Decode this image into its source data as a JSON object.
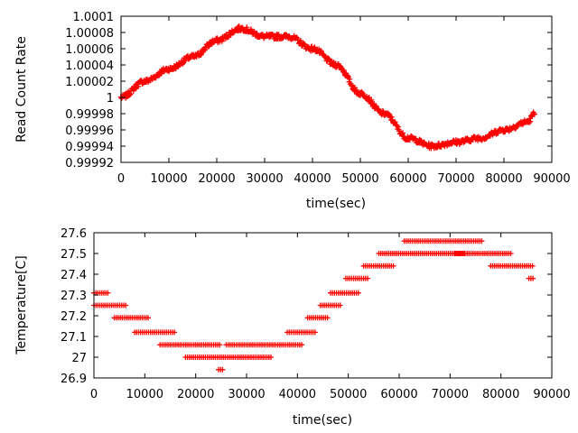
{
  "chart_data": [
    {
      "type": "scatter",
      "xlabel": "time(sec)",
      "ylabel": "Read Count Rate",
      "xlim": [
        0,
        90000
      ],
      "ylim": [
        0.99992,
        1.0001
      ],
      "xticks": [
        0,
        10000,
        20000,
        30000,
        40000,
        50000,
        60000,
        70000,
        80000,
        90000
      ],
      "yticks": [
        0.99992,
        0.99994,
        0.99996,
        0.99998,
        1,
        1.00002,
        1.00004,
        1.00006,
        1.00008,
        1.0001
      ],
      "ytick_labels": [
        "0.99992",
        "0.99994",
        "0.99996",
        "0.99998",
        "1",
        "1.00002",
        "1.00004",
        "1.00006",
        "1.00008",
        "1.0001"
      ],
      "grid": false,
      "marker": "+",
      "color": "#ff0000",
      "series": [
        {
          "x": [
            0,
            5000,
            10000,
            15000,
            20000,
            25000,
            30000,
            35000,
            40000,
            45000,
            50000,
            55000,
            60000,
            65000,
            70000,
            75000,
            80000,
            85000,
            86400
          ],
          "y": [
            1.0,
            1.00002,
            1.000035,
            1.00005,
            1.00007,
            1.000085,
            1.000075,
            1.000075,
            1.00006,
            1.00004,
            1.000005,
            0.99998,
            0.99995,
            0.99994,
            0.999945,
            0.99995,
            0.99996,
            0.99997,
            0.99998
          ]
        }
      ]
    },
    {
      "type": "scatter",
      "xlabel": "time(sec)",
      "ylabel": "Temperature[C]",
      "xlim": [
        0,
        90000
      ],
      "ylim": [
        26.9,
        27.6
      ],
      "xticks": [
        0,
        10000,
        20000,
        30000,
        40000,
        50000,
        60000,
        70000,
        80000,
        90000
      ],
      "yticks": [
        26.9,
        27,
        27.1,
        27.2,
        27.3,
        27.4,
        27.5,
        27.6
      ],
      "ytick_labels": [
        "26.9",
        "27",
        "27.1",
        "27.2",
        "27.3",
        "27.4",
        "27.5",
        "27.6"
      ],
      "grid": false,
      "marker": "+",
      "color": "#ff0000",
      "segments": [
        {
          "y": 27.31,
          "x": [
            0,
            3000
          ]
        },
        {
          "y": 27.25,
          "x": [
            0,
            6500
          ]
        },
        {
          "y": 27.19,
          "x": [
            4000,
            11000
          ]
        },
        {
          "y": 27.12,
          "x": [
            8000,
            16000
          ]
        },
        {
          "y": 27.06,
          "x": [
            13000,
            25000
          ]
        },
        {
          "y": 27.0,
          "x": [
            18000,
            35000
          ]
        },
        {
          "y": 26.94,
          "x": [
            24500,
            25500
          ]
        },
        {
          "y": 27.06,
          "x": [
            26000,
            41000
          ]
        },
        {
          "y": 27.12,
          "x": [
            38000,
            43500
          ]
        },
        {
          "y": 27.19,
          "x": [
            42000,
            46000
          ]
        },
        {
          "y": 27.25,
          "x": [
            44500,
            48500
          ]
        },
        {
          "y": 27.31,
          "x": [
            46500,
            52000
          ]
        },
        {
          "y": 27.38,
          "x": [
            49500,
            54000
          ]
        },
        {
          "y": 27.44,
          "x": [
            53000,
            59000
          ]
        },
        {
          "y": 27.5,
          "x": [
            56000,
            73000
          ]
        },
        {
          "y": 27.56,
          "x": [
            61000,
            76500
          ]
        },
        {
          "y": 27.5,
          "x": [
            71000,
            82000
          ]
        },
        {
          "y": 27.44,
          "x": [
            78000,
            86400
          ]
        },
        {
          "y": 27.38,
          "x": [
            85500,
            86400
          ]
        }
      ]
    }
  ]
}
